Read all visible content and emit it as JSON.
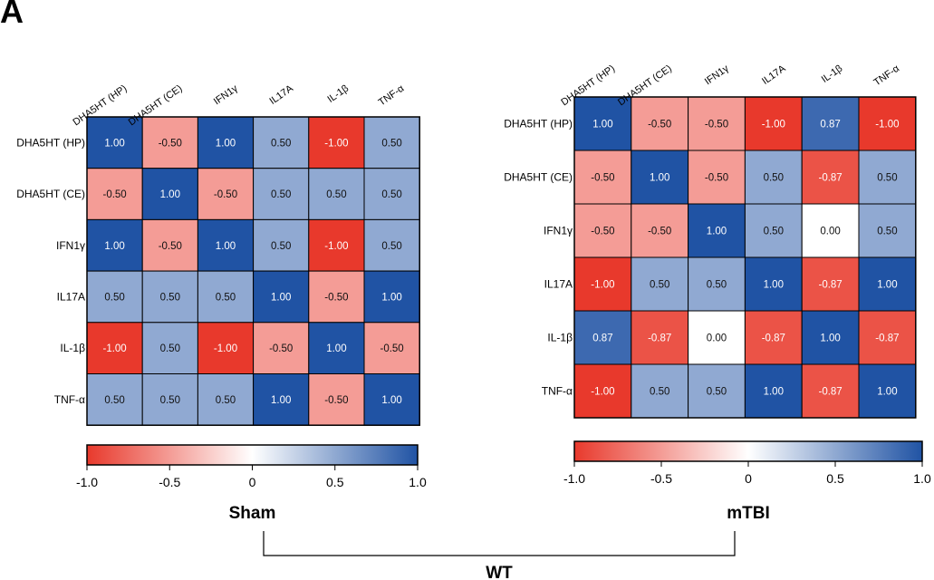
{
  "panel_letter": "A",
  "group_label": "WT",
  "colors": {
    "negative": "#e8392c",
    "zero": "#ffffff",
    "positive": "#2053a4",
    "border": "#000000"
  },
  "chart_data": [
    {
      "type": "heatmap",
      "title": "Sham",
      "row_labels": [
        "DHA5HT (HP)",
        "DHA5HT (CE)",
        "IFN1γ",
        "IL17A",
        "IL-1β",
        "TNF-α"
      ],
      "col_labels": [
        "DHA5HT (HP)",
        "DHA5HT (CE)",
        "IFN1γ",
        "IL17A",
        "IL-1β",
        "TNF-α"
      ],
      "values": [
        [
          1.0,
          -0.5,
          1.0,
          0.5,
          -1.0,
          0.5
        ],
        [
          -0.5,
          1.0,
          -0.5,
          0.5,
          0.5,
          0.5
        ],
        [
          1.0,
          -0.5,
          1.0,
          0.5,
          -1.0,
          0.5
        ],
        [
          0.5,
          0.5,
          0.5,
          1.0,
          -0.5,
          1.0
        ],
        [
          -1.0,
          0.5,
          -1.0,
          -0.5,
          1.0,
          -0.5
        ],
        [
          0.5,
          0.5,
          0.5,
          1.0,
          -0.5,
          1.0
        ]
      ],
      "colorbar": {
        "range": [
          -1.0,
          1.0
        ],
        "ticks": [
          "-1.0",
          "-0.5",
          "0",
          "0.5",
          "1.0"
        ]
      }
    },
    {
      "type": "heatmap",
      "title": "mTBI",
      "row_labels": [
        "DHA5HT (HP)",
        "DHA5HT (CE)",
        "IFN1γ",
        "IL17A",
        "IL-1β",
        "TNF-α"
      ],
      "col_labels": [
        "DHA5HT (HP)",
        "DHA5HT (CE)",
        "IFN1γ",
        "IL17A",
        "IL-1β",
        "TNF-α"
      ],
      "values": [
        [
          1.0,
          -0.5,
          -0.5,
          -1.0,
          0.87,
          -1.0
        ],
        [
          -0.5,
          1.0,
          -0.5,
          0.5,
          -0.87,
          0.5
        ],
        [
          -0.5,
          -0.5,
          1.0,
          0.5,
          0.0,
          0.5
        ],
        [
          -1.0,
          0.5,
          0.5,
          1.0,
          -0.87,
          1.0
        ],
        [
          0.87,
          -0.87,
          0.0,
          -0.87,
          1.0,
          -0.87
        ],
        [
          -1.0,
          0.5,
          0.5,
          1.0,
          -0.87,
          1.0
        ]
      ],
      "colorbar": {
        "range": [
          -1.0,
          1.0
        ],
        "ticks": [
          "-1.0",
          "-0.5",
          "0",
          "0.5",
          "1.0"
        ]
      }
    }
  ]
}
